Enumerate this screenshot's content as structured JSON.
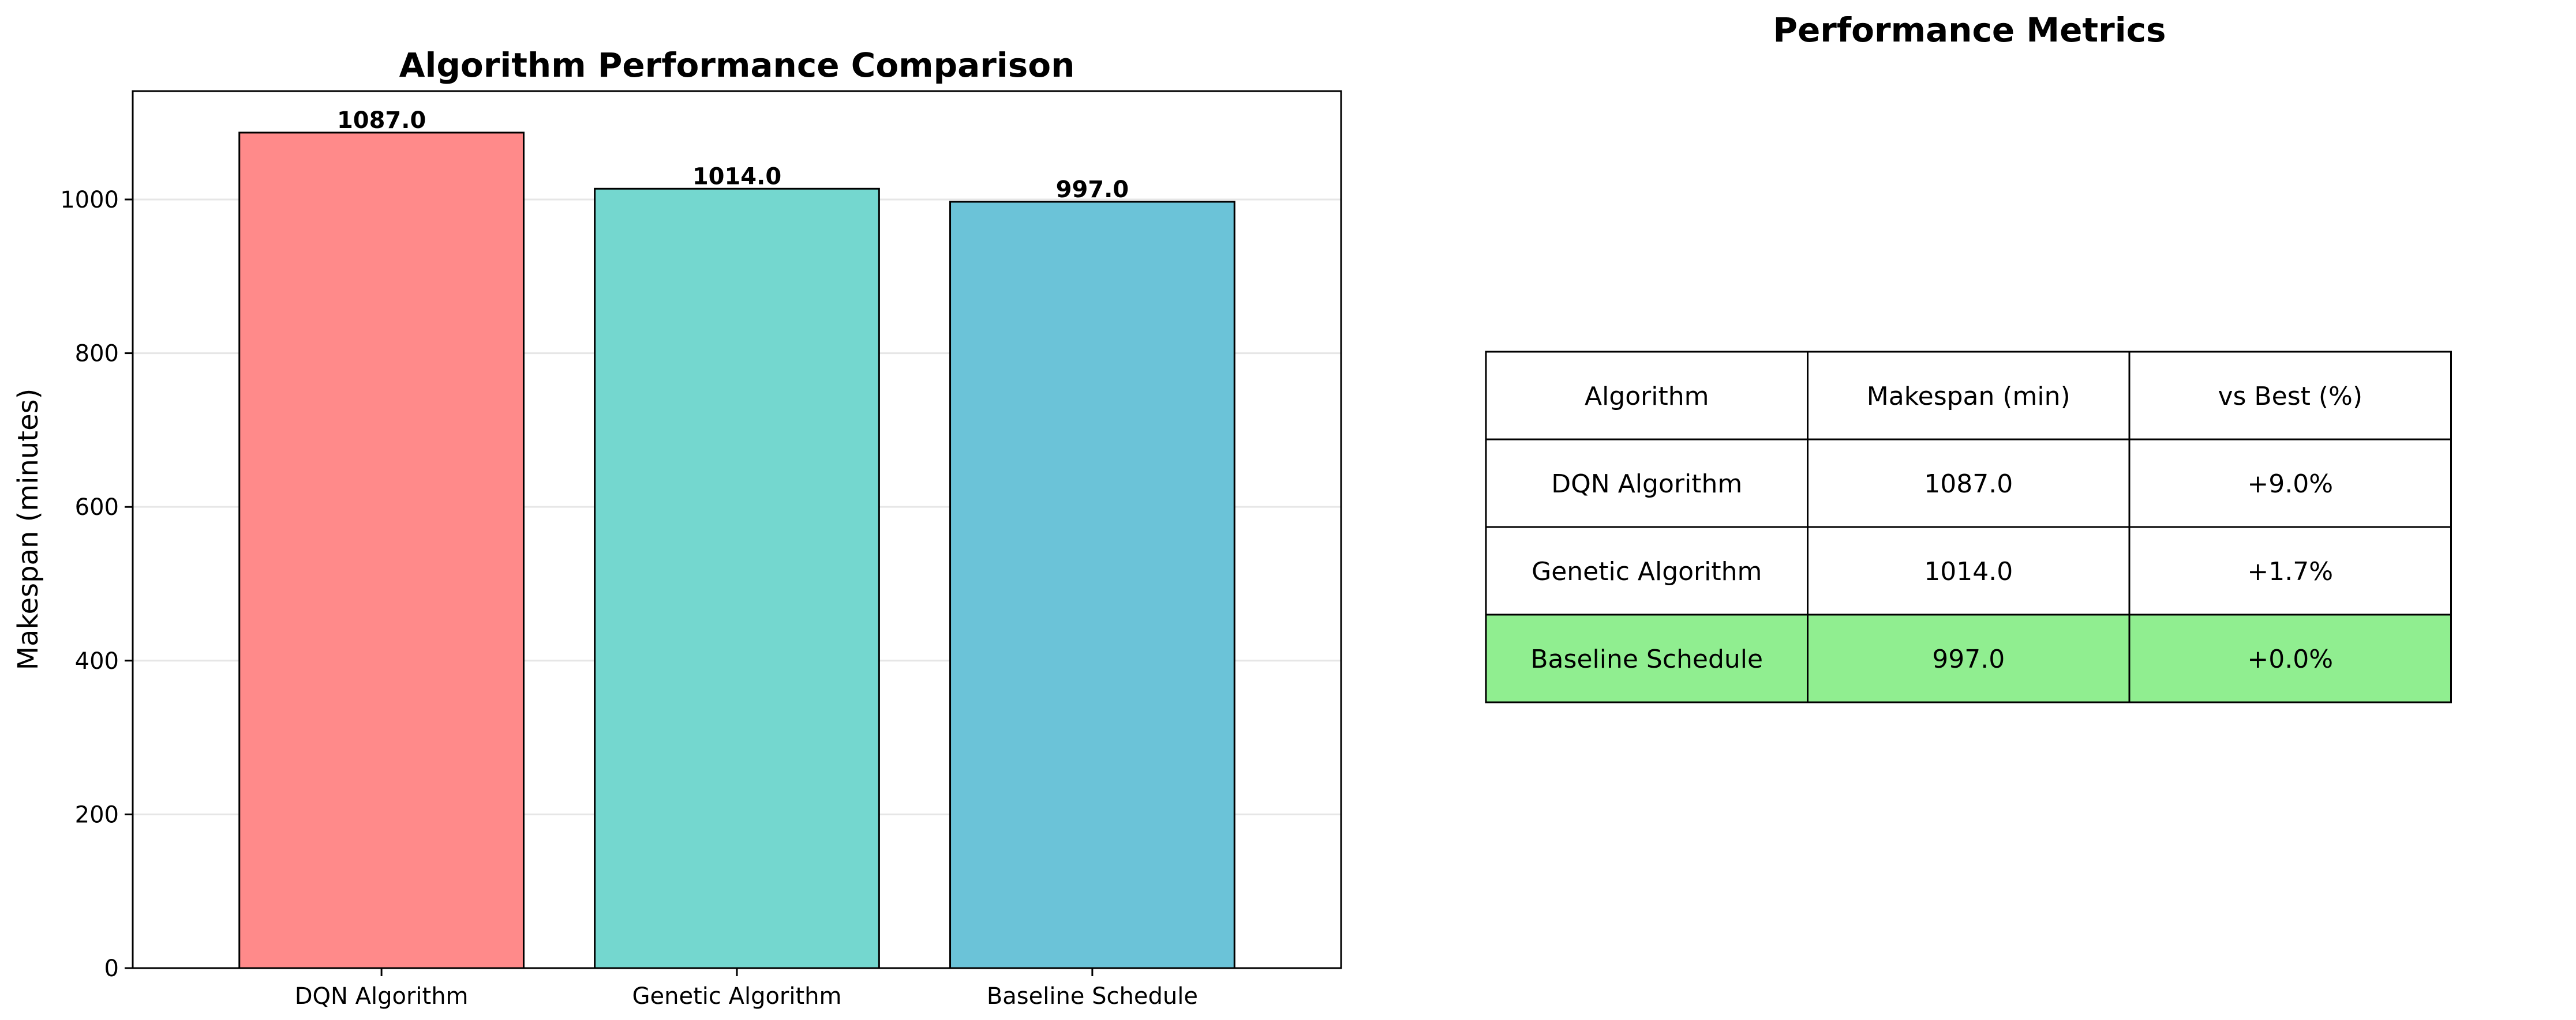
{
  "chart_data": [
    {
      "type": "bar",
      "title": "Algorithm Performance Comparison",
      "categories": [
        "DQN Algorithm",
        "Genetic Algorithm",
        "Baseline Schedule"
      ],
      "values": [
        1087.0,
        1014.0,
        997.0
      ],
      "value_labels": [
        "1087.0",
        "1014.0",
        "997.0"
      ],
      "colors": [
        "#FF8A8A",
        "#74D7CF",
        "#6BC3D8"
      ],
      "xlabel": "",
      "ylabel": "Makespan (minutes)",
      "ylim": [
        0,
        1141
      ],
      "yticks": [
        0,
        200,
        400,
        600,
        800,
        1000
      ],
      "grid": "horizontal"
    },
    {
      "type": "table",
      "title": "Performance Metrics",
      "columns": [
        "Algorithm",
        "Makespan (min)",
        "vs Best (%)"
      ],
      "rows": [
        [
          "DQN Algorithm",
          "1087.0",
          "+9.0%"
        ],
        [
          "Genetic Algorithm",
          "1014.0",
          "+1.7%"
        ],
        [
          "Baseline Schedule",
          "997.0",
          "+0.0%"
        ]
      ],
      "highlight_row": 2,
      "highlight_color": "#90EE90"
    }
  ]
}
